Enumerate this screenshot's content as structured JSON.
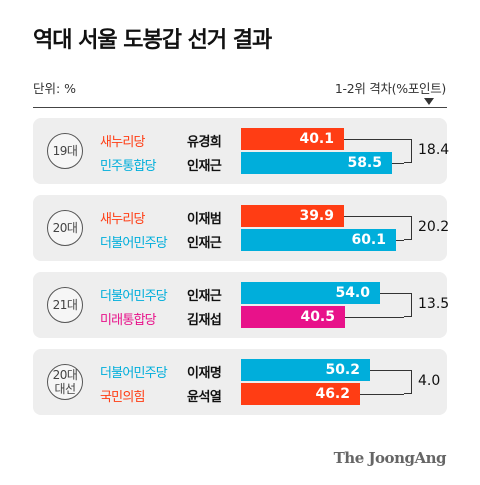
{
  "title": "역대 서울 도봉갑 선거 결과",
  "unit_label": "단위: %",
  "gap_label": "1-2위 격차(%포인트)",
  "source": "The JoongAng",
  "colors": {
    "saenuri": "#ff3d14",
    "minju": "#00aedb",
    "mirae": "#e8128a",
    "kookmin": "#ff3d14",
    "saenuri_text": "#ff3d14",
    "minju_text": "#00aedb",
    "mirae_text": "#e8128a"
  },
  "chart_data": {
    "type": "bar",
    "orientation": "horizontal",
    "title": "역대 서울 도봉갑 선거 결과",
    "unit": "%",
    "xlim": [
      0,
      60.1
    ],
    "groups": [
      {
        "label": [
          "19대"
        ],
        "gap": "18.4",
        "rows": [
          {
            "party": "새누리당",
            "candidate": "유경희",
            "value": 40.1,
            "display": "40.1",
            "color": "#ff3d14"
          },
          {
            "party": "민주통합당",
            "candidate": "인재근",
            "value": 58.5,
            "display": "58.5",
            "color": "#00aedb"
          }
        ]
      },
      {
        "label": [
          "20대"
        ],
        "gap": "20.2",
        "rows": [
          {
            "party": "새누리당",
            "candidate": "이재범",
            "value": 39.9,
            "display": "39.9",
            "color": "#ff3d14"
          },
          {
            "party": "더불어민주당",
            "candidate": "인재근",
            "value": 60.1,
            "display": "60.1",
            "color": "#00aedb"
          }
        ]
      },
      {
        "label": [
          "21대"
        ],
        "gap": "13.5",
        "rows": [
          {
            "party": "더불어민주당",
            "candidate": "인재근",
            "value": 54.0,
            "display": "54.0",
            "color": "#00aedb"
          },
          {
            "party": "미래통합당",
            "candidate": "김재섭",
            "value": 40.5,
            "display": "40.5",
            "color": "#e8128a"
          }
        ]
      },
      {
        "label": [
          "20대",
          "대선"
        ],
        "gap": "4.0",
        "rows": [
          {
            "party": "더불어민주당",
            "candidate": "이재명",
            "value": 50.2,
            "display": "50.2",
            "color": "#00aedb"
          },
          {
            "party": "국민의힘",
            "candidate": "윤석열",
            "value": 46.2,
            "display": "46.2",
            "color": "#ff3d14"
          }
        ]
      }
    ]
  }
}
